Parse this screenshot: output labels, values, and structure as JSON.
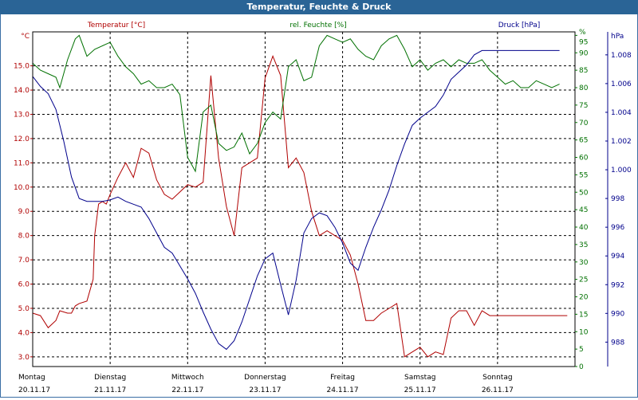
{
  "window": {
    "title": "Temperatur, Feuchte & Druck"
  },
  "colors": {
    "temperature": "#b00000",
    "humidity": "#007000",
    "pressure": "#00008b",
    "grid": "#000000",
    "titlebar": "#2a6496"
  },
  "chart_data": {
    "type": "line",
    "title": "Temperatur, Feuchte & Druck",
    "xlabel": "",
    "x_ticks": [
      {
        "day": "Montag",
        "date": "20.11.17"
      },
      {
        "day": "Dienstag",
        "date": "21.11.17"
      },
      {
        "day": "Mittwoch",
        "date": "22.11.17"
      },
      {
        "day": "Donnerstag",
        "date": "23.11.17"
      },
      {
        "day": "Freitag",
        "date": "24.11.17"
      },
      {
        "day": "Samstag",
        "date": "25.11.17"
      },
      {
        "day": "Sonntag",
        "date": "26.11.17"
      }
    ],
    "xlim": [
      0,
      7
    ],
    "axes": {
      "temperature": {
        "label": "Temperatur [°C]",
        "unit": "°C",
        "ylim": [
          2.6,
          16.4
        ],
        "ticks": [
          3.0,
          4.0,
          5.0,
          6.0,
          7.0,
          8.0,
          9.0,
          10.0,
          11.0,
          12.0,
          13.0,
          14.0,
          15.0
        ],
        "tick_labels": [
          "3.0",
          "4.0",
          "5.0",
          "6.0",
          "7.0",
          "8.0",
          "9.0",
          "10.0",
          "11.0",
          "12.0",
          "13.0",
          "14.0",
          "15.0"
        ]
      },
      "humidity": {
        "label": "rel. Feuchte [%]",
        "unit": "%",
        "ylim": [
          0,
          96
        ],
        "ticks": [
          0,
          5,
          10,
          15,
          20,
          25,
          30,
          35,
          40,
          45,
          50,
          55,
          60,
          65,
          70,
          75,
          80,
          85,
          90,
          95
        ],
        "tick_labels": [
          "0",
          "5",
          "10",
          "15",
          "20",
          "25",
          "30",
          "35",
          "40",
          "45",
          "50",
          "55",
          "60",
          "65",
          "70",
          "75",
          "80",
          "85",
          "90",
          "95"
        ],
        "top_label": "%"
      },
      "pressure": {
        "label": "Druck [hPa]",
        "unit": "hPa",
        "ylim": [
          986.3,
          1009.6
        ],
        "ticks": [
          988,
          990,
          992,
          994,
          996,
          998,
          1000,
          1002,
          1004,
          1006,
          1008
        ],
        "tick_labels": [
          "988",
          "990",
          "992",
          "994",
          "996",
          "998",
          "1.000",
          "1.002",
          "1.004",
          "1.006",
          "1.008"
        ]
      }
    },
    "series": [
      {
        "name": "Temperatur",
        "axis": "temperature",
        "color": "#b00000",
        "x": [
          0,
          0.1,
          0.2,
          0.3,
          0.35,
          0.45,
          0.5,
          0.55,
          0.6,
          0.7,
          0.78,
          0.8,
          0.85,
          0.9,
          0.95,
          1.0,
          1.1,
          1.2,
          1.3,
          1.4,
          1.5,
          1.6,
          1.7,
          1.8,
          1.9,
          2.0,
          2.1,
          2.2,
          2.3,
          2.4,
          2.5,
          2.6,
          2.7,
          2.8,
          2.9,
          3.0,
          3.1,
          3.2,
          3.3,
          3.4,
          3.5,
          3.6,
          3.7,
          3.8,
          3.9,
          4.0,
          4.1,
          4.2,
          4.3,
          4.4,
          4.5,
          4.6,
          4.7,
          4.8,
          4.9,
          5.0,
          5.1,
          5.2,
          5.3,
          5.4,
          5.5,
          5.6,
          5.7,
          5.8,
          5.9,
          6.0,
          6.1,
          6.2,
          6.3,
          6.4,
          6.5,
          6.6,
          6.7,
          6.8,
          6.9
        ],
        "values": [
          4.8,
          4.7,
          4.2,
          4.5,
          4.9,
          4.8,
          4.8,
          5.1,
          5.2,
          5.3,
          6.2,
          8.0,
          9.3,
          9.4,
          9.3,
          9.7,
          10.4,
          11.0,
          10.4,
          11.6,
          11.4,
          10.3,
          9.7,
          9.5,
          9.8,
          10.1,
          10.0,
          10.2,
          14.6,
          11.2,
          9.2,
          8.0,
          10.8,
          11.0,
          11.2,
          14.5,
          15.4,
          14.6,
          10.8,
          11.2,
          10.6,
          9.0,
          8.0,
          8.2,
          8.0,
          7.8,
          7.2,
          6.0,
          4.5,
          4.5,
          4.8,
          5.0,
          5.2,
          3.0,
          3.2,
          3.4,
          3.0,
          3.2,
          3.1,
          4.6,
          4.9,
          4.9,
          4.3,
          4.9,
          4.7,
          4.7,
          4.7,
          4.7,
          4.7,
          4.7,
          4.7,
          4.7,
          4.7,
          4.7,
          4.7
        ]
      },
      {
        "name": "rel. Feuchte",
        "axis": "humidity",
        "color": "#007000",
        "x": [
          0,
          0.1,
          0.2,
          0.3,
          0.35,
          0.45,
          0.55,
          0.6,
          0.7,
          0.8,
          0.9,
          1.0,
          1.1,
          1.2,
          1.3,
          1.4,
          1.5,
          1.6,
          1.7,
          1.8,
          1.9,
          2.0,
          2.1,
          2.2,
          2.3,
          2.4,
          2.5,
          2.6,
          2.7,
          2.8,
          2.9,
          3.0,
          3.1,
          3.2,
          3.3,
          3.4,
          3.5,
          3.6,
          3.7,
          3.8,
          3.9,
          4.0,
          4.1,
          4.2,
          4.3,
          4.4,
          4.5,
          4.6,
          4.7,
          4.8,
          4.9,
          5.0,
          5.1,
          5.2,
          5.3,
          5.4,
          5.5,
          5.6,
          5.7,
          5.8,
          5.9,
          6.0,
          6.1,
          6.2,
          6.3,
          6.4,
          6.5,
          6.6,
          6.7,
          6.8
        ],
        "values": [
          87,
          85,
          84,
          83,
          80,
          88,
          94,
          95,
          89,
          91,
          92,
          93,
          89,
          86,
          84,
          81,
          82,
          80,
          80,
          81,
          78,
          60,
          56,
          73,
          75,
          64,
          62,
          63,
          67,
          61,
          64,
          70,
          73,
          71,
          86,
          88,
          82,
          83,
          92,
          95,
          94,
          93,
          94,
          91,
          89,
          88,
          92,
          94,
          95,
          91,
          86,
          88,
          85,
          87,
          88,
          86,
          88,
          87,
          87,
          88,
          85,
          83,
          81,
          82,
          80,
          80,
          82,
          81,
          80,
          81
        ]
      },
      {
        "name": "Druck",
        "axis": "pressure",
        "color": "#00008b",
        "x": [
          0,
          0.1,
          0.2,
          0.3,
          0.4,
          0.5,
          0.6,
          0.7,
          0.8,
          0.9,
          1.0,
          1.1,
          1.2,
          1.3,
          1.4,
          1.5,
          1.6,
          1.7,
          1.8,
          1.9,
          2.0,
          2.1,
          2.2,
          2.3,
          2.4,
          2.5,
          2.6,
          2.7,
          2.8,
          2.9,
          3.0,
          3.1,
          3.2,
          3.3,
          3.4,
          3.5,
          3.6,
          3.7,
          3.8,
          3.9,
          4.0,
          4.1,
          4.2,
          4.3,
          4.4,
          4.5,
          4.6,
          4.7,
          4.8,
          4.9,
          5.0,
          5.1,
          5.2,
          5.3,
          5.4,
          5.5,
          5.6,
          5.7,
          5.8,
          5.9,
          6.0,
          6.1,
          6.2,
          6.3,
          6.4,
          6.5,
          6.6,
          6.7,
          6.8
        ],
        "values": [
          1006.5,
          1005.8,
          1005.3,
          1004.2,
          1002.0,
          999.5,
          998.0,
          997.8,
          997.8,
          997.8,
          997.9,
          998.1,
          997.8,
          997.6,
          997.4,
          996.6,
          995.6,
          994.6,
          994.2,
          993.3,
          992.4,
          991.4,
          990.1,
          988.9,
          987.9,
          987.5,
          988.1,
          989.4,
          991.0,
          992.6,
          993.8,
          994.2,
          992.0,
          989.9,
          992.3,
          995.6,
          996.6,
          997.0,
          996.8,
          996.0,
          994.9,
          993.5,
          993.0,
          994.6,
          996.0,
          997.2,
          998.6,
          1000.3,
          1001.8,
          1003.1,
          1003.6,
          1004.0,
          1004.4,
          1005.2,
          1006.3,
          1006.8,
          1007.3,
          1008.0,
          1008.3,
          1008.3,
          1008.3,
          1008.3,
          1008.3,
          1008.3,
          1008.3,
          1008.3,
          1008.3,
          1008.3,
          1008.3
        ]
      }
    ]
  }
}
